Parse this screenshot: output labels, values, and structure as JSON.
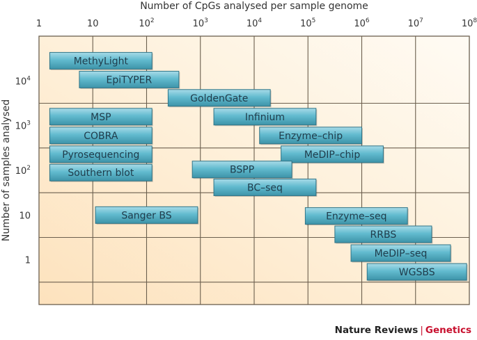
{
  "chart_data": {
    "type": "bar",
    "subtype": "floating-range-horizontal",
    "title": "",
    "xlabel": "Number of CpGs analysed per sample genome",
    "ylabel": "Number of samples analysed",
    "x_scale": "log10",
    "y_scale": "log10",
    "xlim": [
      1,
      100000000
    ],
    "ylim": [
      0.1,
      100000
    ],
    "x_axis_position": "top",
    "grid": true,
    "x_ticks": [
      {
        "base": "1",
        "exp": ""
      },
      {
        "base": "10",
        "exp": ""
      },
      {
        "base": "10",
        "exp": "2"
      },
      {
        "base": "10",
        "exp": "3"
      },
      {
        "base": "10",
        "exp": "4"
      },
      {
        "base": "10",
        "exp": "5"
      },
      {
        "base": "10",
        "exp": "6"
      },
      {
        "base": "10",
        "exp": "7"
      },
      {
        "base": "10",
        "exp": "8"
      }
    ],
    "y_ticks": [
      {
        "base": "10",
        "exp": "4",
        "value": 10000
      },
      {
        "base": "10",
        "exp": "3",
        "value": 1000
      },
      {
        "base": "10",
        "exp": "2",
        "value": 100
      },
      {
        "base": "10",
        "exp": "",
        "value": 10
      },
      {
        "base": "1",
        "exp": "",
        "value": 1
      }
    ],
    "bars": [
      {
        "label": "MethyLight",
        "x_start_log10": 0.2,
        "x_end_log10": 2.1,
        "y_log10": 4.45
      },
      {
        "label": "EpiTYPER",
        "x_start_log10": 0.75,
        "x_end_log10": 2.6,
        "y_log10": 4.03
      },
      {
        "label": "GoldenGate",
        "x_start_log10": 2.4,
        "x_end_log10": 4.3,
        "y_log10": 3.62
      },
      {
        "label": "Infinium",
        "x_start_log10": 3.25,
        "x_end_log10": 5.15,
        "y_log10": 3.2
      },
      {
        "label": "MSP",
        "x_start_log10": 0.2,
        "x_end_log10": 2.1,
        "y_log10": 3.2
      },
      {
        "label": "Enzyme–chip",
        "x_start_log10": 4.1,
        "x_end_log10": 6.0,
        "y_log10": 2.78
      },
      {
        "label": "COBRA",
        "x_start_log10": 0.2,
        "x_end_log10": 2.1,
        "y_log10": 2.78
      },
      {
        "label": "MeDIP–chip",
        "x_start_log10": 4.5,
        "x_end_log10": 6.4,
        "y_log10": 2.36
      },
      {
        "label": "Pyrosequencing",
        "x_start_log10": 0.2,
        "x_end_log10": 2.1,
        "y_log10": 2.36
      },
      {
        "label": "Southern blot",
        "x_start_log10": 0.2,
        "x_end_log10": 2.1,
        "y_log10": 1.95
      },
      {
        "label": "BSPP",
        "x_start_log10": 2.85,
        "x_end_log10": 4.7,
        "y_log10": 2.02
      },
      {
        "label": "BC–seq",
        "x_start_log10": 3.25,
        "x_end_log10": 5.15,
        "y_log10": 1.62
      },
      {
        "label": "Sanger BS",
        "x_start_log10": 1.05,
        "x_end_log10": 2.95,
        "y_log10": 1.0
      },
      {
        "label": "Enzyme–seq",
        "x_start_log10": 4.95,
        "x_end_log10": 6.85,
        "y_log10": 0.98
      },
      {
        "label": "RRBS",
        "x_start_log10": 5.5,
        "x_end_log10": 7.3,
        "y_log10": 0.57
      },
      {
        "label": "MeDIP–seq",
        "x_start_log10": 5.8,
        "x_end_log10": 7.65,
        "y_log10": 0.15
      },
      {
        "label": "WGSBS",
        "x_start_log10": 6.1,
        "x_end_log10": 7.95,
        "y_log10": -0.27
      }
    ]
  },
  "credit": {
    "journal": "Nature Reviews",
    "separator": "|",
    "section": "Genetics"
  },
  "colors": {
    "bar_fill_top": "#9fd6e4",
    "bar_fill_mid": "#56b3c8",
    "bar_fill_bottom": "#3f98ad",
    "bar_stroke": "#2f7487",
    "grid": "#6b5f4e",
    "bg_left": "#fde5c2",
    "bg_right": "#fffaf1",
    "credit_accent": "#c8102e"
  }
}
